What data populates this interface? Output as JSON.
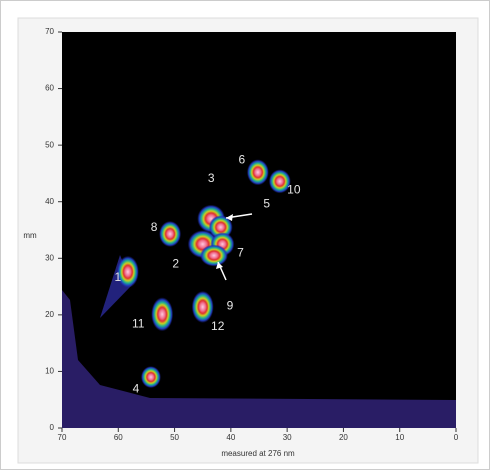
{
  "chart_data": {
    "type": "scatter",
    "x_label": "measured at 276 nm",
    "y_label": "mm",
    "xlim": [
      70,
      0
    ],
    "ylim": [
      0,
      70
    ],
    "xticks": [
      70,
      60,
      50,
      40,
      30,
      20,
      10,
      0
    ],
    "yticks": [
      0,
      10,
      20,
      30,
      40,
      50,
      60,
      70
    ],
    "spots": [
      {
        "label": "1",
        "x": 58.3,
        "y": 27.6
      },
      {
        "label": "2",
        "x": 45.0,
        "y": 32.5
      },
      {
        "label": "3",
        "x": 43.5,
        "y": 37.0
      },
      {
        "label": "4",
        "x": 54.2,
        "y": 9.0
      },
      {
        "label": "5",
        "x": 41.8,
        "y": 35.5
      },
      {
        "label": "6",
        "x": 35.2,
        "y": 45.2
      },
      {
        "label": "7",
        "x": 41.5,
        "y": 32.5
      },
      {
        "label": "8",
        "x": 50.8,
        "y": 34.3
      },
      {
        "label": "9",
        "x": 43.0,
        "y": 30.5
      },
      {
        "label": "10",
        "x": 31.3,
        "y": 43.6
      },
      {
        "label": "11",
        "x": 52.2,
        "y": 20.1
      },
      {
        "label": "12",
        "x": 45.0,
        "y": 21.4
      }
    ]
  }
}
